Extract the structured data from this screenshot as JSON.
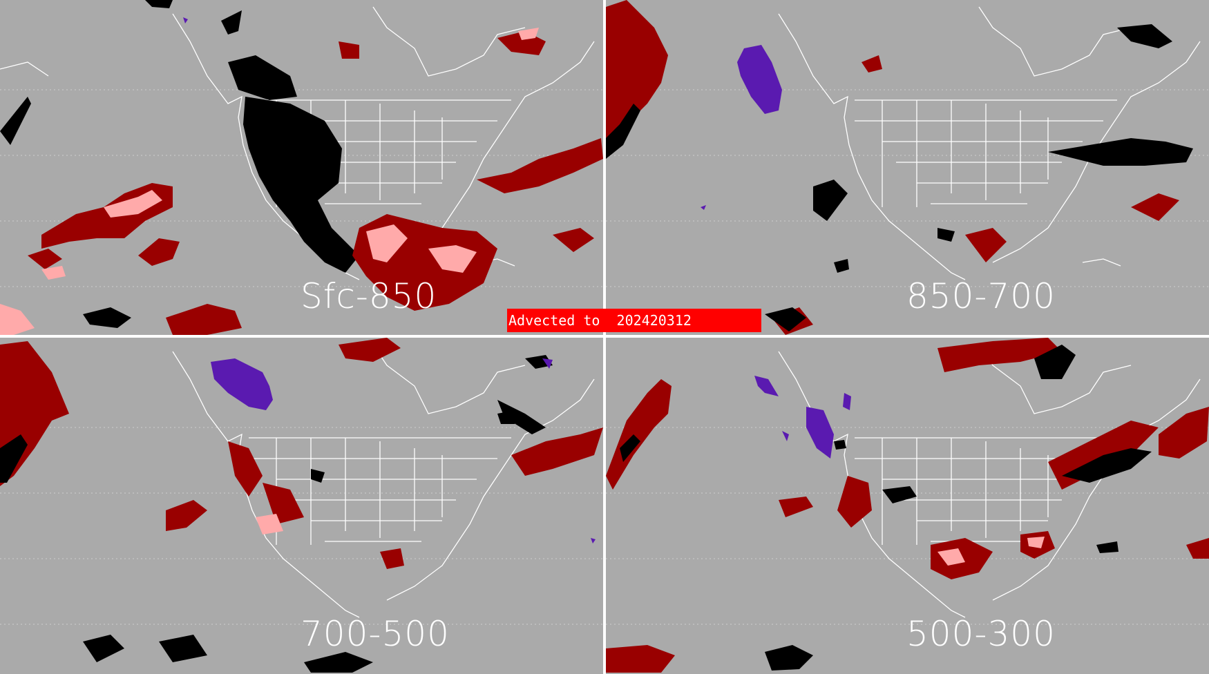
{
  "banner": {
    "text": "Advected to  202420312"
  },
  "panels": [
    {
      "label": "Sfc-850"
    },
    {
      "label": "850-700"
    },
    {
      "label": "700-500"
    },
    {
      "label": "500-300"
    }
  ],
  "colors": {
    "background": "#aaaaaa",
    "dark_red": "#990000",
    "pink": "#ffaaaa",
    "black": "#000000",
    "purple": "#5a1ab0",
    "map_lines": "#ffffff"
  }
}
